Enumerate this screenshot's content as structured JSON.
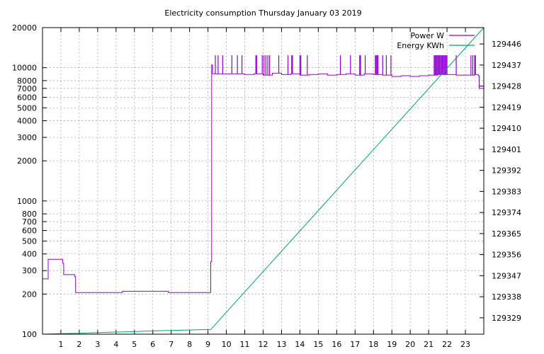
{
  "chart_data": {
    "type": "line",
    "title": "Electricity consumption Thursday January 03 2019",
    "xlabel": "",
    "ylabel": "",
    "y2label": "",
    "xlim": [
      0,
      24
    ],
    "ylim": [
      100,
      20000
    ],
    "yscale": "log",
    "y2lim": [
      129322,
      129453
    ],
    "grid": true,
    "legend_position": "top-right",
    "x_ticks": [
      1,
      2,
      3,
      4,
      5,
      6,
      7,
      8,
      9,
      10,
      11,
      12,
      13,
      14,
      15,
      16,
      17,
      18,
      19,
      20,
      21,
      22,
      23
    ],
    "y_ticks": [
      100,
      200,
      300,
      400,
      500,
      600,
      700,
      800,
      1000,
      2000,
      3000,
      4000,
      5000,
      6000,
      7000,
      8000,
      10000,
      20000
    ],
    "y2_ticks": [
      129329,
      129338,
      129347,
      129356,
      129365,
      129374,
      129383,
      129392,
      129401,
      129410,
      129419,
      129428,
      129437,
      129446
    ],
    "series": [
      {
        "name": "Power W",
        "axis": "y",
        "color": "#9400d3",
        "x": [
          0,
          0.3,
          0.31,
          1.05,
          1.1,
          1.15,
          1.2,
          1.7,
          1.75,
          1.8,
          4.3,
          4.35,
          6.8,
          6.85,
          9.1,
          9.15,
          9.2,
          9.25,
          10.0,
          11.0,
          11.5,
          12.0,
          12.5,
          13.0,
          13.5,
          14.0,
          14.5,
          15.0,
          15.5,
          16.0,
          16.5,
          17.0,
          17.5,
          18.0,
          18.5,
          19.0,
          19.5,
          20.0,
          20.5,
          21.0,
          21.5,
          22.0,
          22.5,
          23.0,
          23.5,
          23.7,
          23.75,
          24.0
        ],
        "values": [
          260,
          260,
          365,
          365,
          340,
          280,
          280,
          280,
          270,
          205,
          205,
          210,
          210,
          205,
          205,
          350,
          10500,
          9000,
          9000,
          8900,
          9000,
          8800,
          9100,
          8900,
          9000,
          8800,
          8900,
          9000,
          8800,
          8900,
          9000,
          8800,
          9000,
          8900,
          8800,
          8600,
          8700,
          8600,
          8700,
          8800,
          8900,
          8900,
          8800,
          8800,
          8900,
          8700,
          7000,
          8700
        ],
        "spikes": [
          9.4,
          9.55,
          9.8,
          10.3,
          10.6,
          10.85,
          11.6,
          11.65,
          11.95,
          12.05,
          12.15,
          12.25,
          12.35,
          12.85,
          13.35,
          13.55,
          13.6,
          14.0,
          14.05,
          14.4,
          16.2,
          16.75,
          17.25,
          17.3,
          17.55,
          18.1,
          18.15,
          18.2,
          18.25,
          18.5,
          18.7,
          18.95,
          21.3,
          21.35,
          21.4,
          21.45,
          21.5,
          21.55,
          21.6,
          21.65,
          21.7,
          21.75,
          21.8,
          21.85,
          21.9,
          21.95,
          22.0,
          22.5,
          23.3,
          23.4,
          23.5,
          23.55
        ],
        "spike_value": 12400
      },
      {
        "name": "Energy KWh",
        "axis": "y2",
        "color": "#009e73",
        "x": [
          0,
          1,
          2,
          3,
          4,
          5,
          6,
          7,
          8,
          9,
          9.15,
          24
        ],
        "values": [
          129322.0,
          129322.2,
          129322.4,
          129322.7,
          129322.9,
          129323.1,
          129323.4,
          129323.6,
          129323.8,
          129324.0,
          129324.0,
          129453.0
        ]
      }
    ]
  }
}
